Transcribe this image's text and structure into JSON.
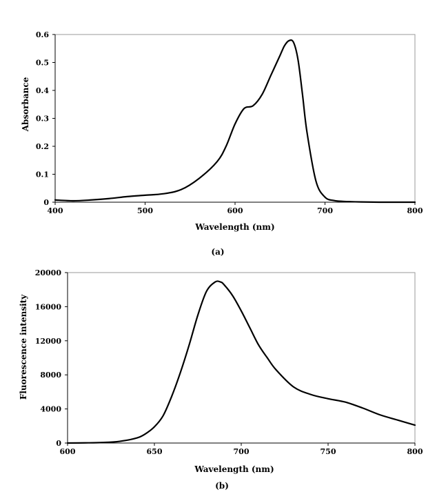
{
  "chart_data": [
    {
      "type": "line",
      "caption": "(a)",
      "xlabel": "Wavelength (nm)",
      "ylabel": "Absorbance",
      "xlim": [
        400,
        800
      ],
      "ylim": [
        0,
        0.6
      ],
      "xticks": [
        400,
        500,
        600,
        700,
        800
      ],
      "yticks": [
        0,
        0.1,
        0.2,
        0.3,
        0.4,
        0.5,
        0.6
      ],
      "xtick_labels": [
        "400",
        "500",
        "600",
        "700",
        "800"
      ],
      "ytick_labels": [
        "0",
        "0.1",
        "0.2",
        "0.3",
        "0.4",
        "0.5",
        "0.6"
      ],
      "grid": false,
      "series": [
        {
          "x": [
            400,
            420,
            440,
            460,
            480,
            500,
            520,
            540,
            560,
            580,
            590,
            600,
            610,
            620,
            630,
            640,
            650,
            655,
            660,
            665,
            670,
            675,
            680,
            690,
            700,
            710,
            720,
            740,
            760,
            780,
            800
          ],
          "y": [
            0.008,
            0.005,
            0.008,
            0.013,
            0.02,
            0.025,
            0.03,
            0.045,
            0.085,
            0.145,
            0.2,
            0.28,
            0.335,
            0.345,
            0.385,
            0.455,
            0.525,
            0.56,
            0.578,
            0.572,
            0.51,
            0.385,
            0.25,
            0.075,
            0.018,
            0.006,
            0.003,
            0.001,
            0.0,
            0.0,
            0.0
          ]
        }
      ]
    },
    {
      "type": "line",
      "caption": "(b)",
      "xlabel": "Wavelength (nm)",
      "ylabel": "Fluorescence intensity",
      "xlim": [
        600,
        800
      ],
      "ylim": [
        0,
        20000
      ],
      "xticks": [
        600,
        650,
        700,
        750,
        800
      ],
      "yticks": [
        0,
        4000,
        8000,
        12000,
        16000,
        20000
      ],
      "xtick_labels": [
        "600",
        "650",
        "700",
        "750",
        "800"
      ],
      "ytick_labels": [
        "0",
        "4000",
        "8000",
        "12000",
        "16000",
        "20000"
      ],
      "grid": false,
      "series": [
        {
          "x": [
            600,
            610,
            620,
            630,
            640,
            645,
            650,
            655,
            660,
            665,
            670,
            675,
            680,
            685,
            688,
            690,
            695,
            700,
            705,
            710,
            715,
            720,
            730,
            740,
            750,
            760,
            770,
            780,
            790,
            800
          ],
          "y": [
            0,
            20,
            60,
            200,
            600,
            1100,
            1900,
            3200,
            5500,
            8300,
            11500,
            15000,
            17800,
            18900,
            18900,
            18600,
            17300,
            15500,
            13500,
            11500,
            10000,
            8600,
            6600,
            5700,
            5200,
            4800,
            4100,
            3300,
            2700,
            2100
          ]
        }
      ]
    }
  ]
}
